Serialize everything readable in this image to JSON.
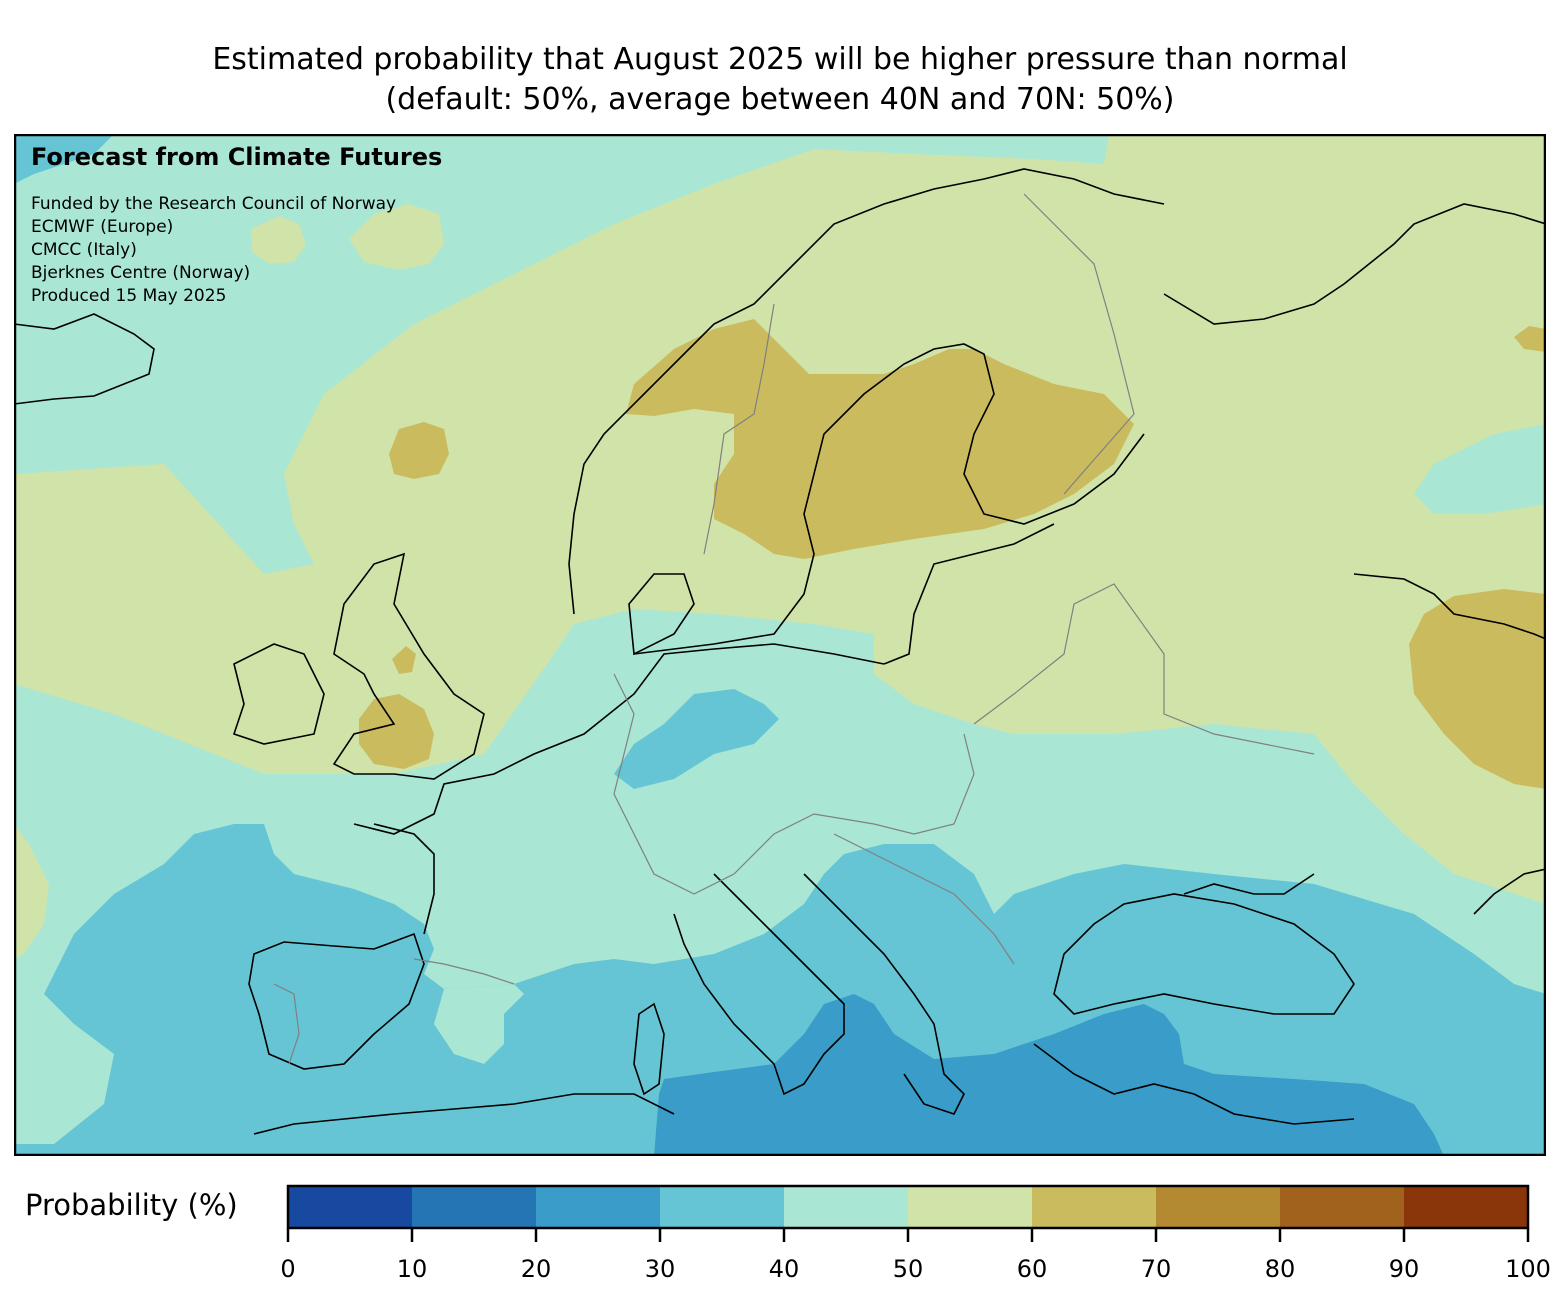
{
  "title": {
    "line1": "Estimated probability that August 2025 will be higher pressure than normal",
    "line2": "(default: 50%, average between 40N and 70N: 50%)"
  },
  "annotation": {
    "heading": "Forecast from Climate Futures",
    "lines": [
      "Funded by the Research Council of Norway",
      "ECMWF (Europe)",
      "CMCC (Italy)",
      "Bjerknes Centre (Norway)",
      "Produced 15 May 2025"
    ]
  },
  "map": {
    "region": "Europe",
    "variable": "probability of higher than normal pressure",
    "period": "August 2025",
    "background_category": "50-60"
  },
  "colorbar": {
    "label": "Probability (%)",
    "bins": [
      {
        "range": [
          0,
          10
        ],
        "color": "#1749a1"
      },
      {
        "range": [
          10,
          20
        ],
        "color": "#2575b5"
      },
      {
        "range": [
          20,
          30
        ],
        "color": "#3a9cc8"
      },
      {
        "range": [
          30,
          40
        ],
        "color": "#66c5d4"
      },
      {
        "range": [
          40,
          50
        ],
        "color": "#a9e6d4"
      },
      {
        "range": [
          50,
          60
        ],
        "color": "#d0e4a9"
      },
      {
        "range": [
          60,
          70
        ],
        "color": "#cbbb5f"
      },
      {
        "range": [
          70,
          80
        ],
        "color": "#b38a31"
      },
      {
        "range": [
          80,
          90
        ],
        "color": "#a1621d"
      },
      {
        "range": [
          90,
          100
        ],
        "color": "#8b350a"
      }
    ],
    "ticks": [
      "0",
      "10",
      "20",
      "30",
      "40",
      "50",
      "60",
      "70",
      "80",
      "90",
      "100"
    ]
  }
}
